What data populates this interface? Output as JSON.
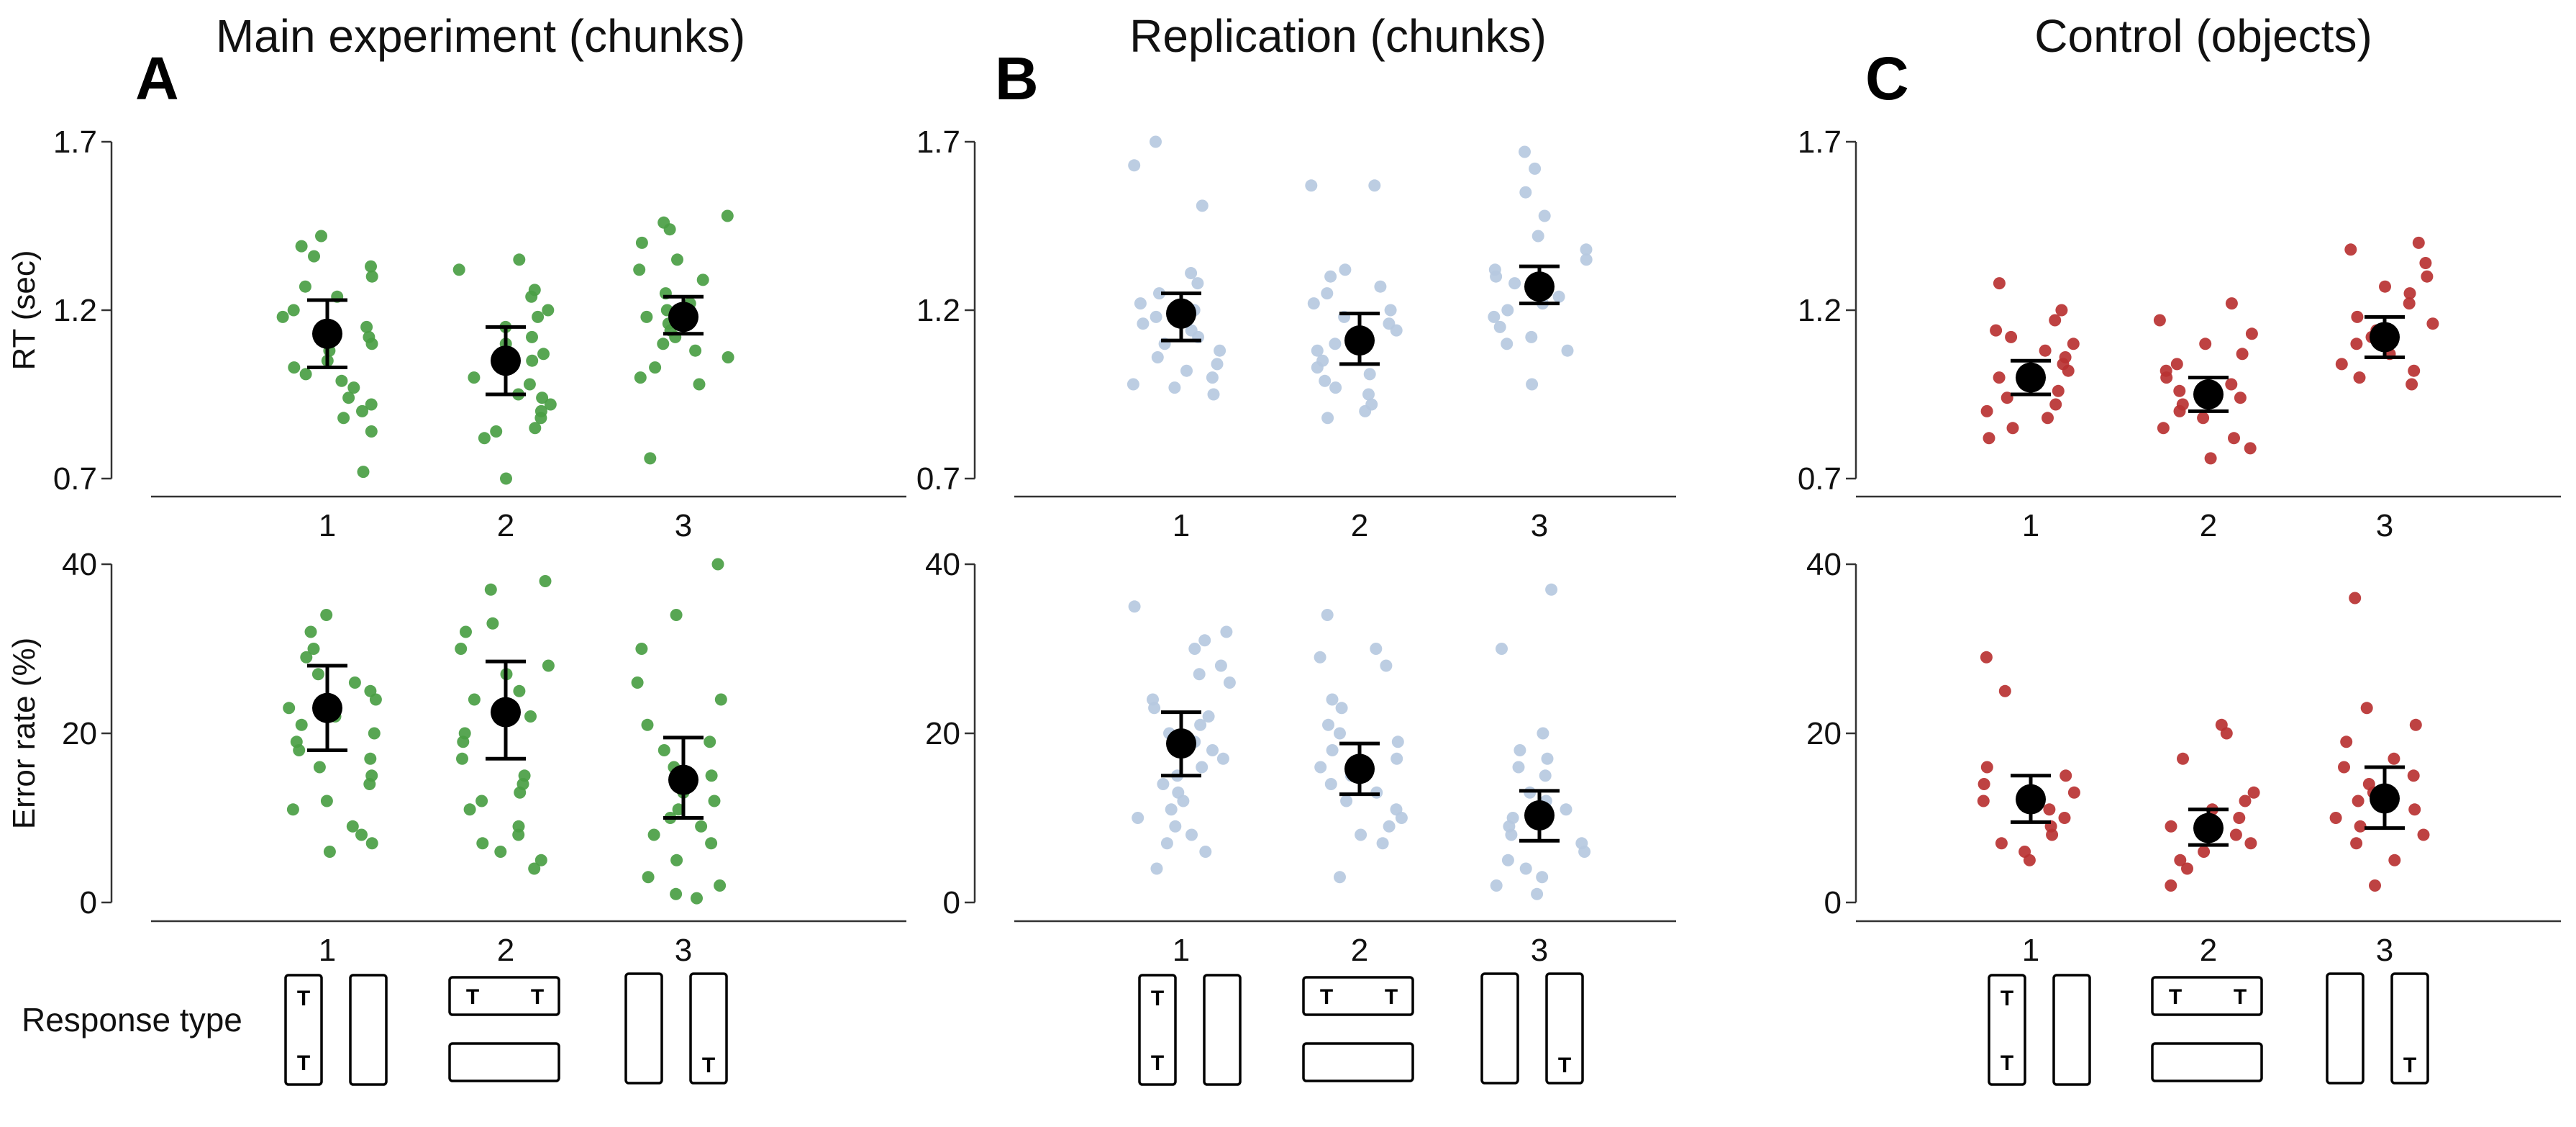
{
  "figure": {
    "response_type_label": "Response type"
  },
  "chart_data": [
    {
      "panel": "A",
      "title": "Main experiment (chunks)",
      "type": "scatter",
      "color": "#4a9e44",
      "x_categories": [
        "1",
        "2",
        "3"
      ],
      "rt": {
        "ylabel": "RT (sec)",
        "ylim": [
          0.7,
          1.7
        ],
        "yticks": [
          "0.7",
          "1.2",
          "1.7"
        ],
        "means": [
          1.13,
          1.05,
          1.18
        ],
        "ci_low": [
          1.03,
          0.95,
          1.13
        ],
        "ci_high": [
          1.23,
          1.15,
          1.24
        ],
        "points": [
          [
            1.42,
            1.39,
            1.36,
            1.33,
            1.3,
            1.27,
            1.24,
            1.2,
            1.18,
            1.15,
            1.12,
            1.1,
            1.08,
            1.05,
            1.03,
            1.01,
            0.99,
            0.97,
            0.94,
            0.92,
            0.9,
            0.88,
            0.84,
            0.72
          ],
          [
            1.35,
            1.32,
            1.26,
            1.24,
            1.2,
            1.18,
            1.15,
            1.12,
            1.1,
            1.07,
            1.05,
            1.03,
            1.0,
            0.98,
            0.95,
            0.94,
            0.92,
            0.9,
            0.88,
            0.85,
            0.84,
            0.82,
            0.7
          ],
          [
            1.48,
            1.46,
            1.44,
            1.4,
            1.35,
            1.32,
            1.29,
            1.25,
            1.22,
            1.2,
            1.18,
            1.16,
            1.14,
            1.12,
            1.1,
            1.08,
            1.06,
            1.03,
            1.0,
            0.98,
            0.76
          ]
        ]
      },
      "err": {
        "ylabel": "Error rate (%)",
        "ylim": [
          0,
          40
        ],
        "yticks": [
          "0",
          "20",
          "40"
        ],
        "means": [
          23,
          22.5,
          14.5
        ],
        "ci_low": [
          18,
          17,
          10
        ],
        "ci_high": [
          28,
          28.5,
          19.5
        ],
        "points": [
          [
            34,
            32,
            30,
            29,
            27,
            26,
            25,
            24,
            23,
            22,
            21,
            20,
            19,
            18,
            17,
            16,
            15,
            14,
            12,
            11,
            9,
            8,
            7,
            6
          ],
          [
            38,
            37,
            33,
            32,
            30,
            28,
            27,
            25,
            24,
            22,
            20,
            19,
            17,
            15,
            14,
            13,
            12,
            11,
            9,
            8,
            7,
            6,
            5,
            4
          ],
          [
            40,
            34,
            30,
            26,
            24,
            21,
            19,
            18,
            16,
            15,
            14,
            13,
            12,
            11,
            10,
            9,
            8,
            7,
            5,
            3,
            2,
            1,
            0.5
          ]
        ]
      }
    },
    {
      "panel": "B",
      "title": "Replication (chunks)",
      "type": "scatter",
      "color": "#b6c9e0",
      "x_categories": [
        "1",
        "2",
        "3"
      ],
      "rt": {
        "ylabel": "",
        "ylim": [
          0.7,
          1.7
        ],
        "yticks": [
          "0.7",
          "1.2",
          "1.7"
        ],
        "means": [
          1.19,
          1.11,
          1.27
        ],
        "ci_low": [
          1.11,
          1.04,
          1.22
        ],
        "ci_high": [
          1.25,
          1.19,
          1.33
        ],
        "points": [
          [
            1.7,
            1.63,
            1.51,
            1.31,
            1.28,
            1.25,
            1.22,
            1.2,
            1.18,
            1.16,
            1.14,
            1.12,
            1.1,
            1.08,
            1.06,
            1.04,
            1.02,
            1.0,
            0.98,
            0.97,
            0.95
          ],
          [
            1.57,
            1.57,
            1.32,
            1.3,
            1.27,
            1.25,
            1.22,
            1.2,
            1.18,
            1.16,
            1.14,
            1.12,
            1.1,
            1.08,
            1.05,
            1.03,
            1.01,
            0.99,
            0.97,
            0.95,
            0.92,
            0.9,
            0.88
          ],
          [
            1.67,
            1.62,
            1.55,
            1.48,
            1.42,
            1.38,
            1.35,
            1.32,
            1.3,
            1.28,
            1.26,
            1.24,
            1.22,
            1.2,
            1.18,
            1.15,
            1.12,
            1.1,
            1.08,
            0.98
          ]
        ]
      },
      "err": {
        "ylabel": "",
        "ylim": [
          0,
          40
        ],
        "yticks": [
          "0",
          "20",
          "40"
        ],
        "means": [
          18.8,
          15.8,
          10.3
        ],
        "ci_low": [
          15,
          12.8,
          7.3
        ],
        "ci_high": [
          22.5,
          18.8,
          13.2
        ],
        "points": [
          [
            35,
            32,
            31,
            30,
            28,
            27,
            26,
            24,
            23,
            22,
            21,
            20,
            19,
            18,
            17,
            16,
            15,
            14,
            13,
            12,
            11,
            10,
            9,
            8,
            7,
            6,
            4
          ],
          [
            34,
            30,
            29,
            28,
            24,
            23,
            21,
            20,
            19,
            18,
            17,
            16,
            15,
            14,
            13,
            12,
            11,
            10,
            9,
            8,
            7,
            3
          ],
          [
            37,
            30,
            20,
            18,
            17,
            16,
            15,
            13,
            12,
            11,
            10,
            9,
            8,
            7,
            6,
            5,
            4,
            3,
            2,
            1
          ]
        ]
      }
    },
    {
      "panel": "C",
      "title": "Control (objects)",
      "type": "scatter",
      "color": "#b83232",
      "x_categories": [
        "1",
        "2",
        "3"
      ],
      "rt": {
        "ylabel": "",
        "ylim": [
          0.7,
          1.7
        ],
        "yticks": [
          "0.7",
          "1.2",
          "1.7"
        ],
        "means": [
          1.0,
          0.95,
          1.12
        ],
        "ci_low": [
          0.95,
          0.9,
          1.06
        ],
        "ci_high": [
          1.05,
          1.0,
          1.18
        ],
        "points": [
          [
            1.28,
            1.2,
            1.17,
            1.14,
            1.12,
            1.1,
            1.08,
            1.06,
            1.04,
            1.02,
            1.0,
            0.98,
            0.96,
            0.94,
            0.92,
            0.9,
            0.88,
            0.85,
            0.82
          ],
          [
            1.22,
            1.17,
            1.13,
            1.1,
            1.07,
            1.04,
            1.02,
            1.0,
            0.98,
            0.96,
            0.94,
            0.92,
            0.9,
            0.88,
            0.85,
            0.82,
            0.79,
            0.76
          ],
          [
            1.4,
            1.38,
            1.34,
            1.3,
            1.27,
            1.25,
            1.22,
            1.18,
            1.16,
            1.14,
            1.12,
            1.1,
            1.07,
            1.04,
            1.02,
            1.0,
            0.98
          ]
        ]
      },
      "err": {
        "ylabel": "",
        "ylim": [
          0,
          40
        ],
        "yticks": [
          "0",
          "20",
          "40"
        ],
        "means": [
          12.2,
          8.8,
          12.3
        ],
        "ci_low": [
          9.5,
          6.8,
          8.8
        ],
        "ci_high": [
          15,
          11,
          16
        ],
        "points": [
          [
            29,
            25,
            16,
            15,
            14,
            13,
            12,
            11,
            10,
            9,
            8,
            7,
            6,
            5
          ],
          [
            21,
            20,
            17,
            13,
            12,
            11,
            10,
            9,
            8,
            7,
            6,
            5,
            4,
            2
          ],
          [
            36,
            23,
            21,
            19,
            17,
            16,
            15,
            14,
            13,
            12,
            11,
            10,
            9,
            8,
            7,
            5,
            2
          ]
        ]
      }
    }
  ]
}
